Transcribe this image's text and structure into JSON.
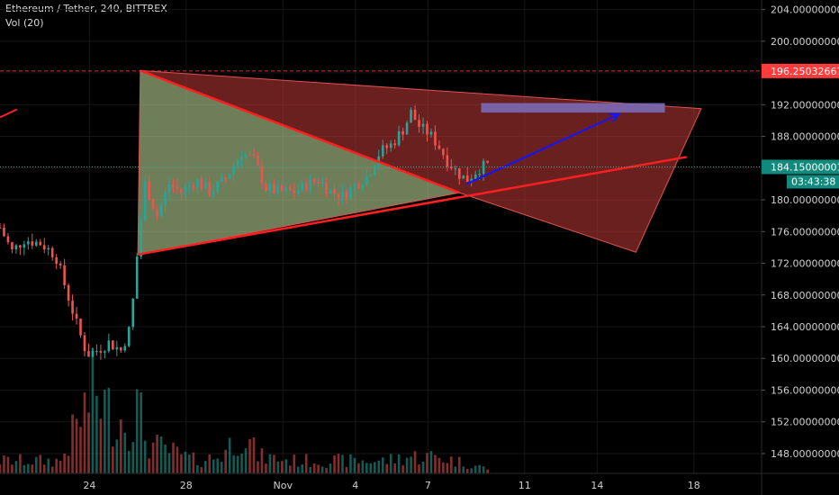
{
  "header": {
    "symbol": "Ethereum / Tether, 240, BITTREX",
    "volume": "Vol (20)"
  },
  "colors": {
    "background": "#000000",
    "up": "#26a69a",
    "down": "#ef5350",
    "trendline": "#ff1f1f",
    "arrow": "#1414ff",
    "target_box": "#7b6fbf",
    "triangle_green": "#c8e6a0",
    "triangle_red": "#c23a3a",
    "badge_red": "#ff3b3b",
    "badge_teal": "#0f8a7c"
  },
  "chart_data": {
    "type": "candlestick",
    "y_axis": {
      "range": [
        145.5,
        205.2
      ],
      "ticks": [
        "204.00000000",
        "200.00000000",
        "196.00000000",
        "192.00000000",
        "188.00000000",
        "184.00000000",
        "180.00000000",
        "176.00000000",
        "172.00000000",
        "168.00000000",
        "164.00000000",
        "160.00000000",
        "156.00000000",
        "152.00000000",
        "148.00000000"
      ],
      "tick_values": [
        204,
        200,
        196,
        192,
        188,
        184,
        180,
        176,
        172,
        168,
        164,
        160,
        156,
        152,
        148
      ]
    },
    "x_axis": {
      "ticks": [
        "24",
        "28",
        "Nov",
        "4",
        "7",
        "11",
        "14",
        "18"
      ],
      "tick_days": [
        24,
        28,
        32,
        35,
        38,
        42,
        45,
        49
      ],
      "day_range": [
        20.3,
        51.8
      ]
    },
    "last_price": "184.15000001",
    "countdown": "03:43:38",
    "horizontal_level": "196.25032667",
    "price_anchors": [
      [
        20.3,
        176.5
      ],
      [
        20.8,
        173.5
      ],
      [
        21.3,
        175
      ],
      [
        22,
        174.5
      ],
      [
        22.6,
        173
      ],
      [
        23.1,
        168
      ],
      [
        23.5,
        164
      ],
      [
        23.9,
        160.5
      ],
      [
        24.3,
        161
      ],
      [
        24.8,
        162
      ],
      [
        25.3,
        161
      ],
      [
        25.7,
        164
      ],
      [
        26.0,
        174
      ],
      [
        26.3,
        182
      ],
      [
        26.8,
        178
      ],
      [
        27.3,
        182
      ],
      [
        27.8,
        181
      ],
      [
        28.4,
        182.5
      ],
      [
        29.0,
        181
      ],
      [
        29.6,
        182.5
      ],
      [
        30.3,
        186
      ],
      [
        30.8,
        185
      ],
      [
        31.3,
        181.5
      ],
      [
        31.9,
        181
      ],
      [
        32.5,
        181
      ],
      [
        33.0,
        182
      ],
      [
        33.5,
        182.5
      ],
      [
        34.0,
        181
      ],
      [
        34.5,
        180.5
      ],
      [
        35.0,
        182
      ],
      [
        35.5,
        183
      ],
      [
        36.0,
        186
      ],
      [
        36.5,
        187
      ],
      [
        37.0,
        189
      ],
      [
        37.3,
        191
      ],
      [
        37.7,
        189
      ],
      [
        38.0,
        188.5
      ],
      [
        38.4,
        187
      ],
      [
        38.8,
        185
      ],
      [
        39.2,
        183.5
      ],
      [
        39.6,
        182.5
      ],
      [
        40.1,
        184
      ],
      [
        40.6,
        184.5
      ]
    ],
    "volume_anchors": [
      [
        20.3,
        3
      ],
      [
        22.8,
        3
      ],
      [
        23.2,
        8
      ],
      [
        24.2,
        20
      ],
      [
        24.9,
        14
      ],
      [
        25.7,
        12
      ],
      [
        26.0,
        16
      ],
      [
        26.4,
        7
      ],
      [
        27.0,
        6
      ],
      [
        28.4,
        3
      ],
      [
        29.4,
        4
      ],
      [
        30.3,
        10
      ],
      [
        31.0,
        4
      ],
      [
        32.5,
        3
      ],
      [
        34.0,
        3
      ],
      [
        35.0,
        3
      ],
      [
        36.2,
        3
      ],
      [
        37.2,
        4
      ],
      [
        38.4,
        4
      ],
      [
        40.6,
        1
      ]
    ],
    "volume_scale_max": 24,
    "drawings": {
      "green_triangle": [
        [
          26.1,
          196.3
        ],
        [
          26.0,
          173.1
        ],
        [
          39.3,
          180.9
        ]
      ],
      "red_triangle": [
        [
          26.1,
          196.3
        ],
        [
          49.3,
          191.5
        ],
        [
          46.6,
          173.4
        ],
        [
          39.3,
          180.9
        ]
      ],
      "lower_trendline": [
        [
          26.0,
          173.1
        ],
        [
          48.7,
          185.4
        ]
      ],
      "upper_trendline": [
        [
          26.1,
          196.3
        ],
        [
          39.3,
          180.9
        ]
      ],
      "stub_line": [
        [
          20.3,
          190.4
        ],
        [
          21.0,
          191.4
        ]
      ],
      "arrow": [
        [
          39.6,
          182.0
        ],
        [
          45.9,
          190.8
        ]
      ],
      "target_box": {
        "x1": 40.2,
        "x2": 47.8,
        "y_top": 192.2,
        "y_bottom": 191.0
      }
    }
  }
}
